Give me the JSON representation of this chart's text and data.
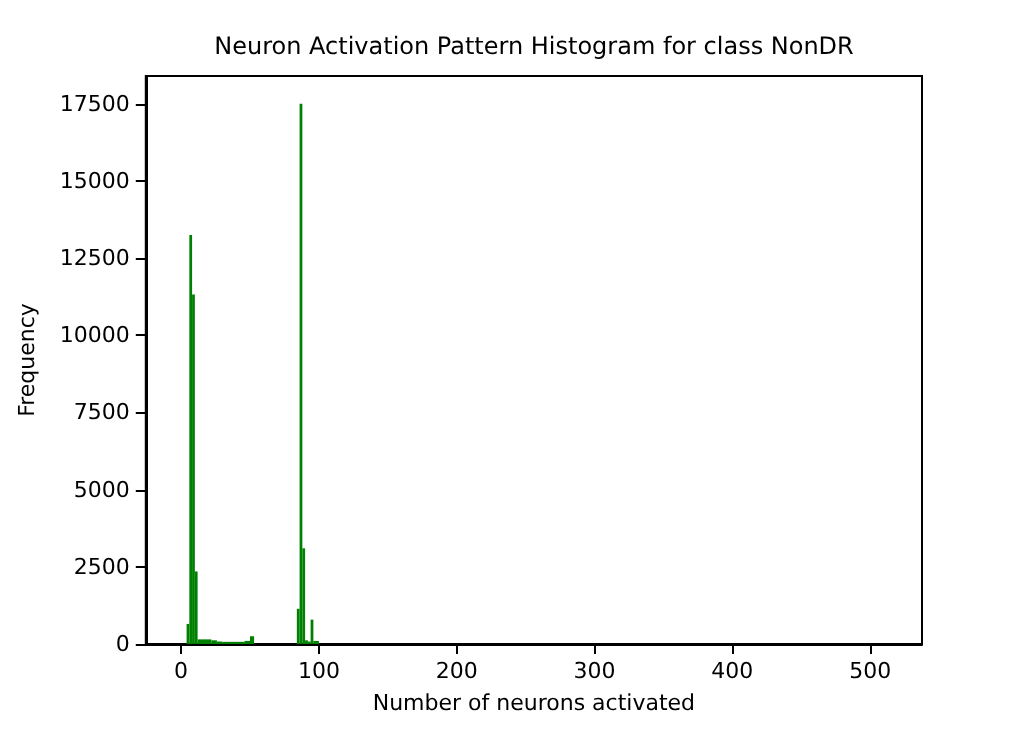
{
  "chart_data": {
    "type": "histogram",
    "title": "Neuron Activation Pattern Histogram for class NonDR",
    "xlabel": "Number of neurons activated",
    "ylabel": "Frequency",
    "color": "#008000",
    "bins": [
      4,
      6,
      8,
      10,
      12,
      22,
      26,
      30,
      46,
      50,
      53,
      84,
      86,
      88,
      90,
      92,
      94,
      96,
      100
    ],
    "values": [
      650,
      13250,
      11320,
      2350,
      150,
      120,
      80,
      70,
      100,
      250,
      0,
      1140,
      17500,
      3100,
      120,
      80,
      790,
      100
    ],
    "xlim": [
      -25.6,
      537.6
    ],
    "xticks": [
      0,
      100,
      200,
      300,
      400,
      500
    ],
    "ylim": [
      0,
      18400
    ],
    "yticks": [
      0,
      2500,
      5000,
      7500,
      10000,
      12500,
      15000,
      17500
    ],
    "grid": false
  }
}
